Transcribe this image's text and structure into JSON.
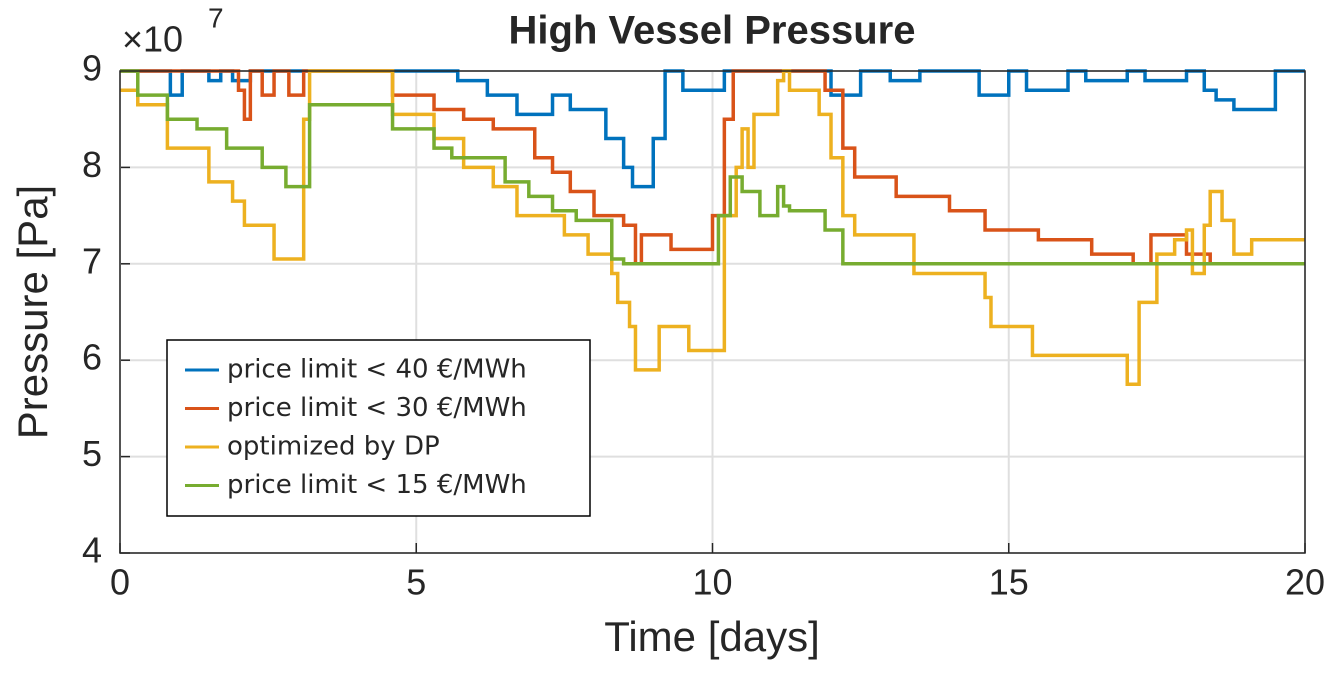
{
  "chart_data": {
    "type": "line",
    "step": "post",
    "title": "High Vessel Pressure",
    "xlabel": "Time [days]",
    "ylabel": "Pressure [Pa]",
    "y_multiplier": {
      "base": "×10",
      "exponent": "7"
    },
    "xlim": [
      0,
      20
    ],
    "xticks": [
      0,
      5,
      10,
      15,
      20
    ],
    "ylim": [
      4,
      9
    ],
    "yticks": [
      4,
      5,
      6,
      7,
      8,
      9
    ],
    "grid": true,
    "legend": "lower left",
    "series": [
      {
        "name": "price limit < 40 €/MWh",
        "color": "#0072bd",
        "x": [
          0,
          0.85,
          1.05,
          1.5,
          1.7,
          1.9,
          2.2,
          5.7,
          6.2,
          6.7,
          7.3,
          7.6,
          8.2,
          8.5,
          8.65,
          9.0,
          9.2,
          9.5,
          10.2,
          12.0,
          12.5,
          13.0,
          13.5,
          14.5,
          15.0,
          15.3,
          16.0,
          16.3,
          17.0,
          17.3,
          18.0,
          18.3,
          18.5,
          18.8,
          19.5,
          20
        ],
        "values": [
          9,
          8.75,
          9,
          8.9,
          9,
          8.9,
          9,
          8.9,
          8.75,
          8.55,
          8.75,
          8.6,
          8.3,
          8.0,
          7.8,
          8.3,
          9,
          8.8,
          9,
          8.75,
          9,
          8.9,
          9,
          8.75,
          9,
          8.8,
          9,
          8.9,
          9,
          8.9,
          9,
          8.8,
          8.7,
          8.6,
          9,
          9
        ]
      },
      {
        "name": "price limit < 30 €/MWh",
        "color": "#d95319",
        "x": [
          0,
          2.0,
          2.1,
          2.2,
          2.4,
          2.6,
          2.85,
          3.1,
          4.6,
          5.3,
          5.8,
          6.3,
          7.0,
          7.3,
          7.6,
          8.0,
          8.5,
          8.7,
          8.8,
          9.3,
          10.0,
          10.2,
          10.35,
          11.9,
          12.2,
          12.4,
          13.1,
          14.0,
          14.6,
          15.5,
          16.4,
          17.1,
          17.4,
          18.0,
          18.4,
          20
        ],
        "values": [
          9,
          8.8,
          8.5,
          9,
          8.75,
          9,
          8.75,
          9,
          8.75,
          8.6,
          8.5,
          8.4,
          8.1,
          7.95,
          7.75,
          7.5,
          7.4,
          7.0,
          7.3,
          7.15,
          7.5,
          8.5,
          9,
          8.8,
          8.2,
          7.9,
          7.7,
          7.55,
          7.35,
          7.25,
          7.1,
          7.0,
          7.3,
          7.1,
          7.0,
          7.0
        ]
      },
      {
        "name": "optimized by DP",
        "color": "#edb120",
        "x": [
          0,
          0.3,
          0.8,
          1.5,
          1.9,
          2.1,
          2.6,
          3.1,
          3.2,
          4.6,
          5.3,
          5.8,
          6.3,
          6.7,
          7.5,
          7.9,
          8.3,
          8.4,
          8.6,
          8.7,
          9.1,
          9.6,
          10.2,
          10.4,
          10.5,
          10.6,
          10.7,
          11.1,
          11.2,
          11.3,
          11.8,
          12.0,
          12.2,
          12.4,
          13.4,
          14.6,
          14.7,
          15.4,
          17.0,
          17.2,
          17.5,
          17.8,
          18.0,
          18.1,
          18.3,
          18.4,
          18.6,
          18.8,
          19.1,
          20
        ],
        "values": [
          8.8,
          8.65,
          8.2,
          7.85,
          7.65,
          7.4,
          7.05,
          8.5,
          9,
          8.55,
          8.3,
          8.0,
          7.8,
          7.5,
          7.3,
          7.1,
          6.9,
          6.6,
          6.35,
          5.9,
          6.35,
          6.1,
          7.5,
          8.0,
          8.4,
          8.0,
          8.55,
          8.9,
          9,
          8.8,
          8.55,
          8.1,
          7.5,
          7.3,
          6.9,
          6.65,
          6.35,
          6.05,
          5.75,
          6.6,
          7.1,
          7.25,
          7.35,
          6.9,
          7.4,
          7.75,
          7.45,
          7.1,
          7.25,
          7.25
        ]
      },
      {
        "name": "price limit < 15 €/MWh",
        "color": "#77ac30",
        "x": [
          0,
          0.3,
          0.8,
          1.3,
          1.8,
          2.4,
          2.8,
          3.2,
          4.6,
          5.3,
          5.6,
          6.5,
          6.9,
          7.3,
          7.7,
          8.3,
          8.5,
          10.1,
          10.3,
          10.5,
          10.8,
          11.1,
          11.2,
          11.3,
          11.9,
          12.2,
          20
        ],
        "values": [
          9,
          8.75,
          8.5,
          8.4,
          8.2,
          8.0,
          7.8,
          8.65,
          8.4,
          8.2,
          8.1,
          7.85,
          7.7,
          7.55,
          7.45,
          7.05,
          7.0,
          7.5,
          7.9,
          7.75,
          7.5,
          7.8,
          7.6,
          7.55,
          7.35,
          7.0,
          7.0
        ]
      }
    ]
  }
}
